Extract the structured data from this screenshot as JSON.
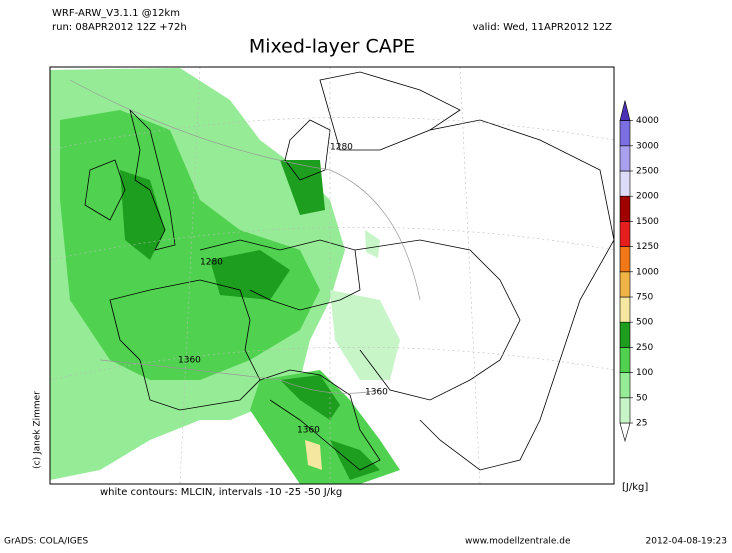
{
  "header": {
    "model": "WRF-ARW_V3.1.1 @12km",
    "run": "run: 08APR2012 12Z +72h",
    "valid": "valid: Wed, 11APR2012 12Z"
  },
  "title": "Mixed-layer CAPE",
  "contour_labels": [
    "1280",
    "1280",
    "1360",
    "1360",
    "1360"
  ],
  "colorbar": {
    "levels": [
      25,
      50,
      100,
      250,
      500,
      750,
      1000,
      1250,
      1500,
      2000,
      2500,
      3000,
      4000
    ],
    "colors": [
      "#ffffff",
      "#c8f5c8",
      "#96eb96",
      "#50d250",
      "#1e9e1e",
      "#f5e6a0",
      "#f0b446",
      "#f07818",
      "#e61e1e",
      "#a00000",
      "#dcdcf8",
      "#aaa0f0",
      "#7b6ee0",
      "#4b32b4"
    ],
    "unit": "[J/kg]"
  },
  "note": "white contours: MLCIN, intervals -10 -25 -50 J/kg",
  "copyright": "(c) Janek Zimmer",
  "footer": {
    "software": "GrADS: COLA/IGES",
    "site": "www.modellzentrale.de",
    "timestamp": "2012-04-08-19:23"
  }
}
